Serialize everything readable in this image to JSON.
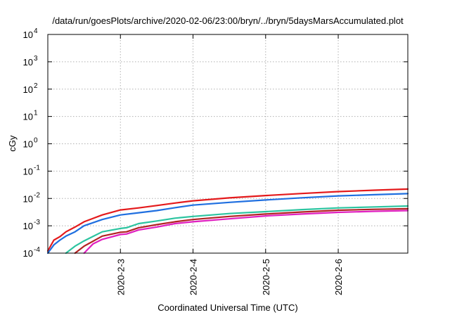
{
  "chart_data": {
    "type": "line",
    "title": "/data/run/goesPlots/archive/2020-02-06/23:00/bryn/../bryn/5daysMarsAccumulated.plot",
    "xlabel": "Coordinated Universal Time (UTC)",
    "ylabel": "cGy",
    "y_scale": "log",
    "ylim": [
      0.0001,
      10000
    ],
    "y_ticks": [
      {
        "value": 10000,
        "base": "10",
        "exp": "4"
      },
      {
        "value": 1000,
        "base": "10",
        "exp": "3"
      },
      {
        "value": 100,
        "base": "10",
        "exp": "2"
      },
      {
        "value": 10,
        "base": "10",
        "exp": "1"
      },
      {
        "value": 1,
        "base": "10",
        "exp": "0"
      },
      {
        "value": 0.1,
        "base": "10",
        "exp": "-1"
      },
      {
        "value": 0.01,
        "base": "10",
        "exp": "-2"
      },
      {
        "value": 0.001,
        "base": "10",
        "exp": "-3"
      },
      {
        "value": 0.0001,
        "base": "10",
        "exp": "-4"
      }
    ],
    "xlim": [
      "2020-02-02T00:00",
      "2020-02-06T23:00"
    ],
    "x_ticks": [
      "2020-2-3",
      "2020-2-4",
      "2020-2-5",
      "2020-2-6"
    ],
    "grid": true,
    "series": [
      {
        "color": "#e41a1c",
        "x": [
          "2020-02-02T00:00",
          "2020-02-02T02:00",
          "2020-02-02T04:00",
          "2020-02-02T06:00",
          "2020-02-02T09:00",
          "2020-02-02T12:00",
          "2020-02-02T18:00",
          "2020-02-03T00:00",
          "2020-02-03T06:00",
          "2020-02-03T12:00",
          "2020-02-03T18:00",
          "2020-02-04T00:00",
          "2020-02-04T12:00",
          "2020-02-05T00:00",
          "2020-02-05T12:00",
          "2020-02-06T00:00",
          "2020-02-06T12:00",
          "2020-02-06T23:00"
        ],
        "y": [
          0.00012,
          0.0003,
          0.0004,
          0.0006,
          0.0009,
          0.0014,
          0.0025,
          0.0038,
          0.0045,
          0.0055,
          0.0068,
          0.0082,
          0.0105,
          0.0128,
          0.0152,
          0.0178,
          0.02,
          0.022
        ]
      },
      {
        "color": "#1f6fe0",
        "x": [
          "2020-02-02T00:00",
          "2020-02-02T02:00",
          "2020-02-02T04:00",
          "2020-02-02T06:00",
          "2020-02-02T09:00",
          "2020-02-02T12:00",
          "2020-02-02T18:00",
          "2020-02-03T00:00",
          "2020-02-03T06:00",
          "2020-02-03T12:00",
          "2020-02-03T18:00",
          "2020-02-04T00:00",
          "2020-02-04T12:00",
          "2020-02-05T00:00",
          "2020-02-05T12:00",
          "2020-02-06T00:00",
          "2020-02-06T12:00",
          "2020-02-06T23:00"
        ],
        "y": [
          0.0001,
          0.0002,
          0.0003,
          0.00042,
          0.0006,
          0.001,
          0.0017,
          0.0025,
          0.003,
          0.0036,
          0.0046,
          0.0057,
          0.0072,
          0.0088,
          0.0106,
          0.0124,
          0.0137,
          0.015
        ]
      },
      {
        "color": "#2cc4a0",
        "x": [
          "2020-02-02T06:00",
          "2020-02-02T09:00",
          "2020-02-02T12:00",
          "2020-02-02T18:00",
          "2020-02-03T00:00",
          "2020-02-03T02:00",
          "2020-02-03T06:00",
          "2020-02-03T12:00",
          "2020-02-03T18:00",
          "2020-02-04T00:00",
          "2020-02-04T12:00",
          "2020-02-05T00:00",
          "2020-02-05T12:00",
          "2020-02-06T00:00",
          "2020-02-06T12:00",
          "2020-02-06T23:00"
        ],
        "y": [
          0.0001,
          0.00018,
          0.00028,
          0.0006,
          0.0008,
          0.00085,
          0.0012,
          0.0015,
          0.0019,
          0.0022,
          0.0028,
          0.0033,
          0.0039,
          0.0045,
          0.0049,
          0.0053
        ]
      },
      {
        "color": "#b22222",
        "x": [
          "2020-02-02T09:00",
          "2020-02-02T12:00",
          "2020-02-02T18:00",
          "2020-02-03T00:00",
          "2020-02-03T02:00",
          "2020-02-03T06:00",
          "2020-02-03T12:00",
          "2020-02-03T18:00",
          "2020-02-04T00:00",
          "2020-02-04T12:00",
          "2020-02-05T00:00",
          "2020-02-05T12:00",
          "2020-02-06T00:00",
          "2020-02-06T12:00",
          "2020-02-06T23:00"
        ],
        "y": [
          0.0001,
          0.00018,
          0.00042,
          0.00058,
          0.0006,
          0.00085,
          0.0011,
          0.0014,
          0.0017,
          0.0022,
          0.0027,
          0.0032,
          0.0037,
          0.004,
          0.0042
        ]
      },
      {
        "color": "#e020c0",
        "x": [
          "2020-02-02T12:00",
          "2020-02-02T15:00",
          "2020-02-02T18:00",
          "2020-02-03T00:00",
          "2020-02-03T02:00",
          "2020-02-03T06:00",
          "2020-02-03T12:00",
          "2020-02-03T18:00",
          "2020-02-04T00:00",
          "2020-02-04T12:00",
          "2020-02-05T00:00",
          "2020-02-05T12:00",
          "2020-02-06T00:00",
          "2020-02-06T12:00",
          "2020-02-06T23:00"
        ],
        "y": [
          0.0001,
          0.00022,
          0.00032,
          0.00048,
          0.0005,
          0.0007,
          0.0009,
          0.0012,
          0.0014,
          0.0018,
          0.0023,
          0.0027,
          0.0031,
          0.0034,
          0.0036
        ]
      }
    ]
  }
}
